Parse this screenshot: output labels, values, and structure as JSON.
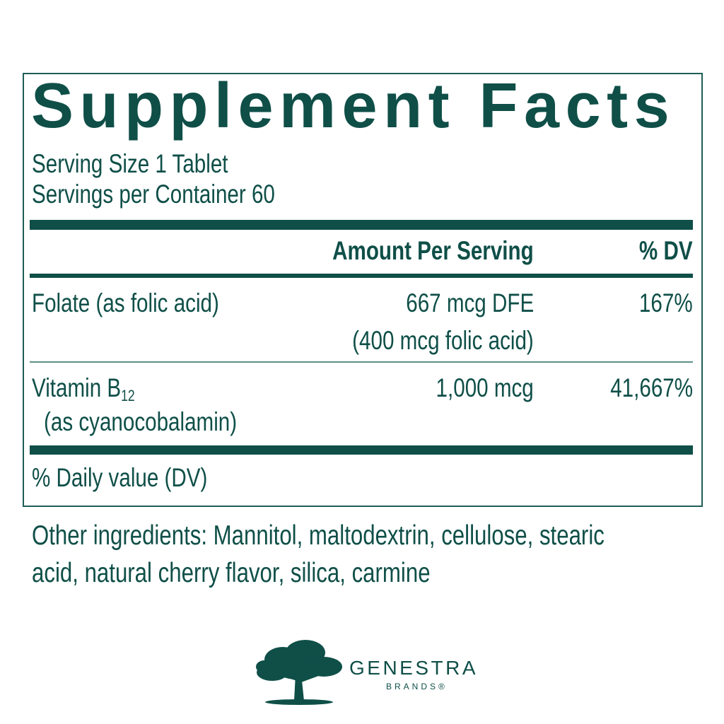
{
  "title": "Supplement Facts",
  "serving_size": "Serving Size 1 Tablet",
  "servings_per_container": "Servings per Container 60",
  "header": {
    "amount": "Amount Per Serving",
    "dv": "% DV"
  },
  "rows": [
    {
      "name": "Folate (as folic acid)",
      "amount": "667 mcg DFE",
      "amount_note": "(400 mcg folic acid)",
      "dv": "167%"
    },
    {
      "name": "Vitamin B",
      "name_sub": "12",
      "name_note": "(as cyanocobalamin)",
      "amount": "1,000 mcg",
      "dv": "41,667%"
    }
  ],
  "footnote": "% Daily value (DV)",
  "other_ingredients": [
    "Other ingredients: Mannitol, maltodextrin, cellulose, stearic",
    "acid, natural cherry flavor, silica, carmine"
  ],
  "logo": {
    "name": "GENESTRA",
    "sub": "BRANDS®",
    "icon": "tree-icon"
  },
  "colors": {
    "primary": "#0f4f48"
  }
}
